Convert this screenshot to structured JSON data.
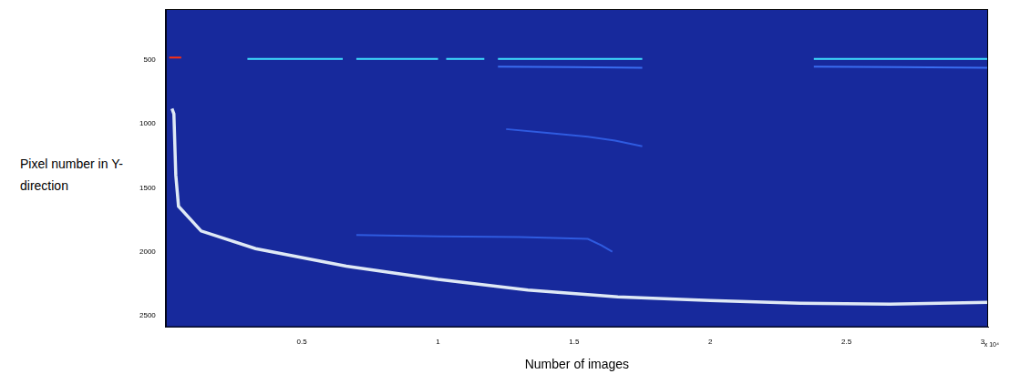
{
  "chart_data": {
    "type": "line",
    "x_label": "Number of images",
    "y_label": "Pixel number in Y-direction",
    "annotations": [
      "x 10⁴"
    ],
    "xlim": [
      0,
      3.02
    ],
    "xticks": [
      0.5,
      1,
      1.5,
      2,
      2.5,
      3
    ],
    "ylim": [
      2592,
      100
    ],
    "yticks": [
      500,
      1000,
      1500,
      2000,
      2500
    ],
    "grid": false,
    "series": [
      {
        "color": "#2f5be0",
        "x": [
          1.25,
          1.4,
          1.55,
          1.65,
          1.75
        ],
        "values": [
          1040,
          1070,
          1100,
          1130,
          1175
        ]
      },
      {
        "color": "#2f5be0",
        "x": [
          0.7,
          1.0,
          1.3,
          1.55,
          1.6,
          1.64
        ],
        "values": [
          1870,
          1880,
          1885,
          1900,
          1950,
          2000
        ]
      },
      {
        "color": "#3a6cf0",
        "x": [
          1.22,
          1.5,
          1.75,
          null,
          2.38,
          2.7,
          3.02
        ],
        "values": [
          550,
          555,
          560,
          null,
          550,
          555,
          560
        ]
      },
      {
        "color": "#40e0ff",
        "x": [
          0.3,
          0.65,
          0.66,
          0.7,
          1.0,
          1.01,
          1.03,
          1.17,
          1.18,
          1.22,
          1.75,
          1.76,
          2.38,
          3.02
        ],
        "values": [
          490,
          490,
          null,
          490,
          490,
          null,
          490,
          490,
          null,
          490,
          490,
          null,
          490,
          490
        ]
      },
      {
        "color": "#ff3010",
        "x": [
          0.013,
          0.057
        ],
        "values": [
          480,
          480
        ]
      },
      {
        "color": "#dfe9f5",
        "x": [
          0.023,
          0.03,
          0.037,
          0.047,
          0.13,
          0.33,
          0.663,
          1.0,
          1.33,
          1.66,
          2.0,
          2.33,
          2.66,
          3.02
        ],
        "values": [
          880,
          920,
          1400,
          1645,
          1838,
          1976,
          2114,
          2217,
          2300,
          2355,
          2383,
          2404,
          2411,
          2397
        ]
      }
    ]
  }
}
